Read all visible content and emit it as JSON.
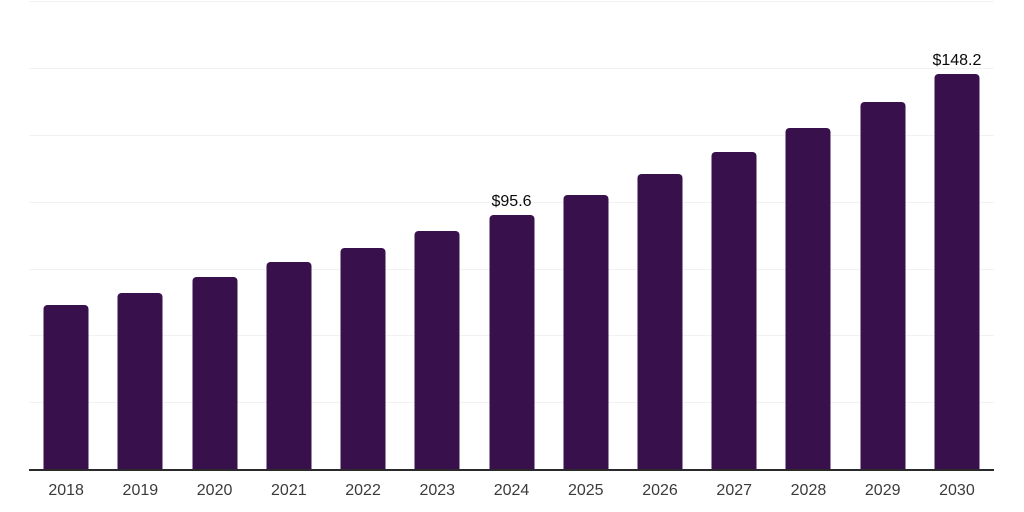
{
  "chart_data": {
    "type": "bar",
    "title": "",
    "xlabel": "",
    "ylabel": "",
    "categories": [
      "2018",
      "2019",
      "2020",
      "2021",
      "2022",
      "2023",
      "2024",
      "2025",
      "2026",
      "2027",
      "2028",
      "2029",
      "2030"
    ],
    "values": [
      61.7,
      66.2,
      72.4,
      77.8,
      83.0,
      89.4,
      95.6,
      102.9,
      110.8,
      119.0,
      128.0,
      137.9,
      148.2
    ],
    "annotations": [
      {
        "category": "2024",
        "label": "$95.6"
      },
      {
        "category": "2030",
        "label": "$148.2"
      }
    ],
    "ylim": [
      0,
      175
    ],
    "gridline_interval": 25,
    "grid": "horizontal-only",
    "y_tick_labels_visible": false,
    "legend_position": "none",
    "colors": {
      "bar": "#37104C",
      "gridline": "#f2f2f2",
      "axis_line": "#2a2a2a",
      "tick_label": "#3b3b3b",
      "annotation": "#0a0a0a",
      "background": "#ffffff"
    }
  }
}
